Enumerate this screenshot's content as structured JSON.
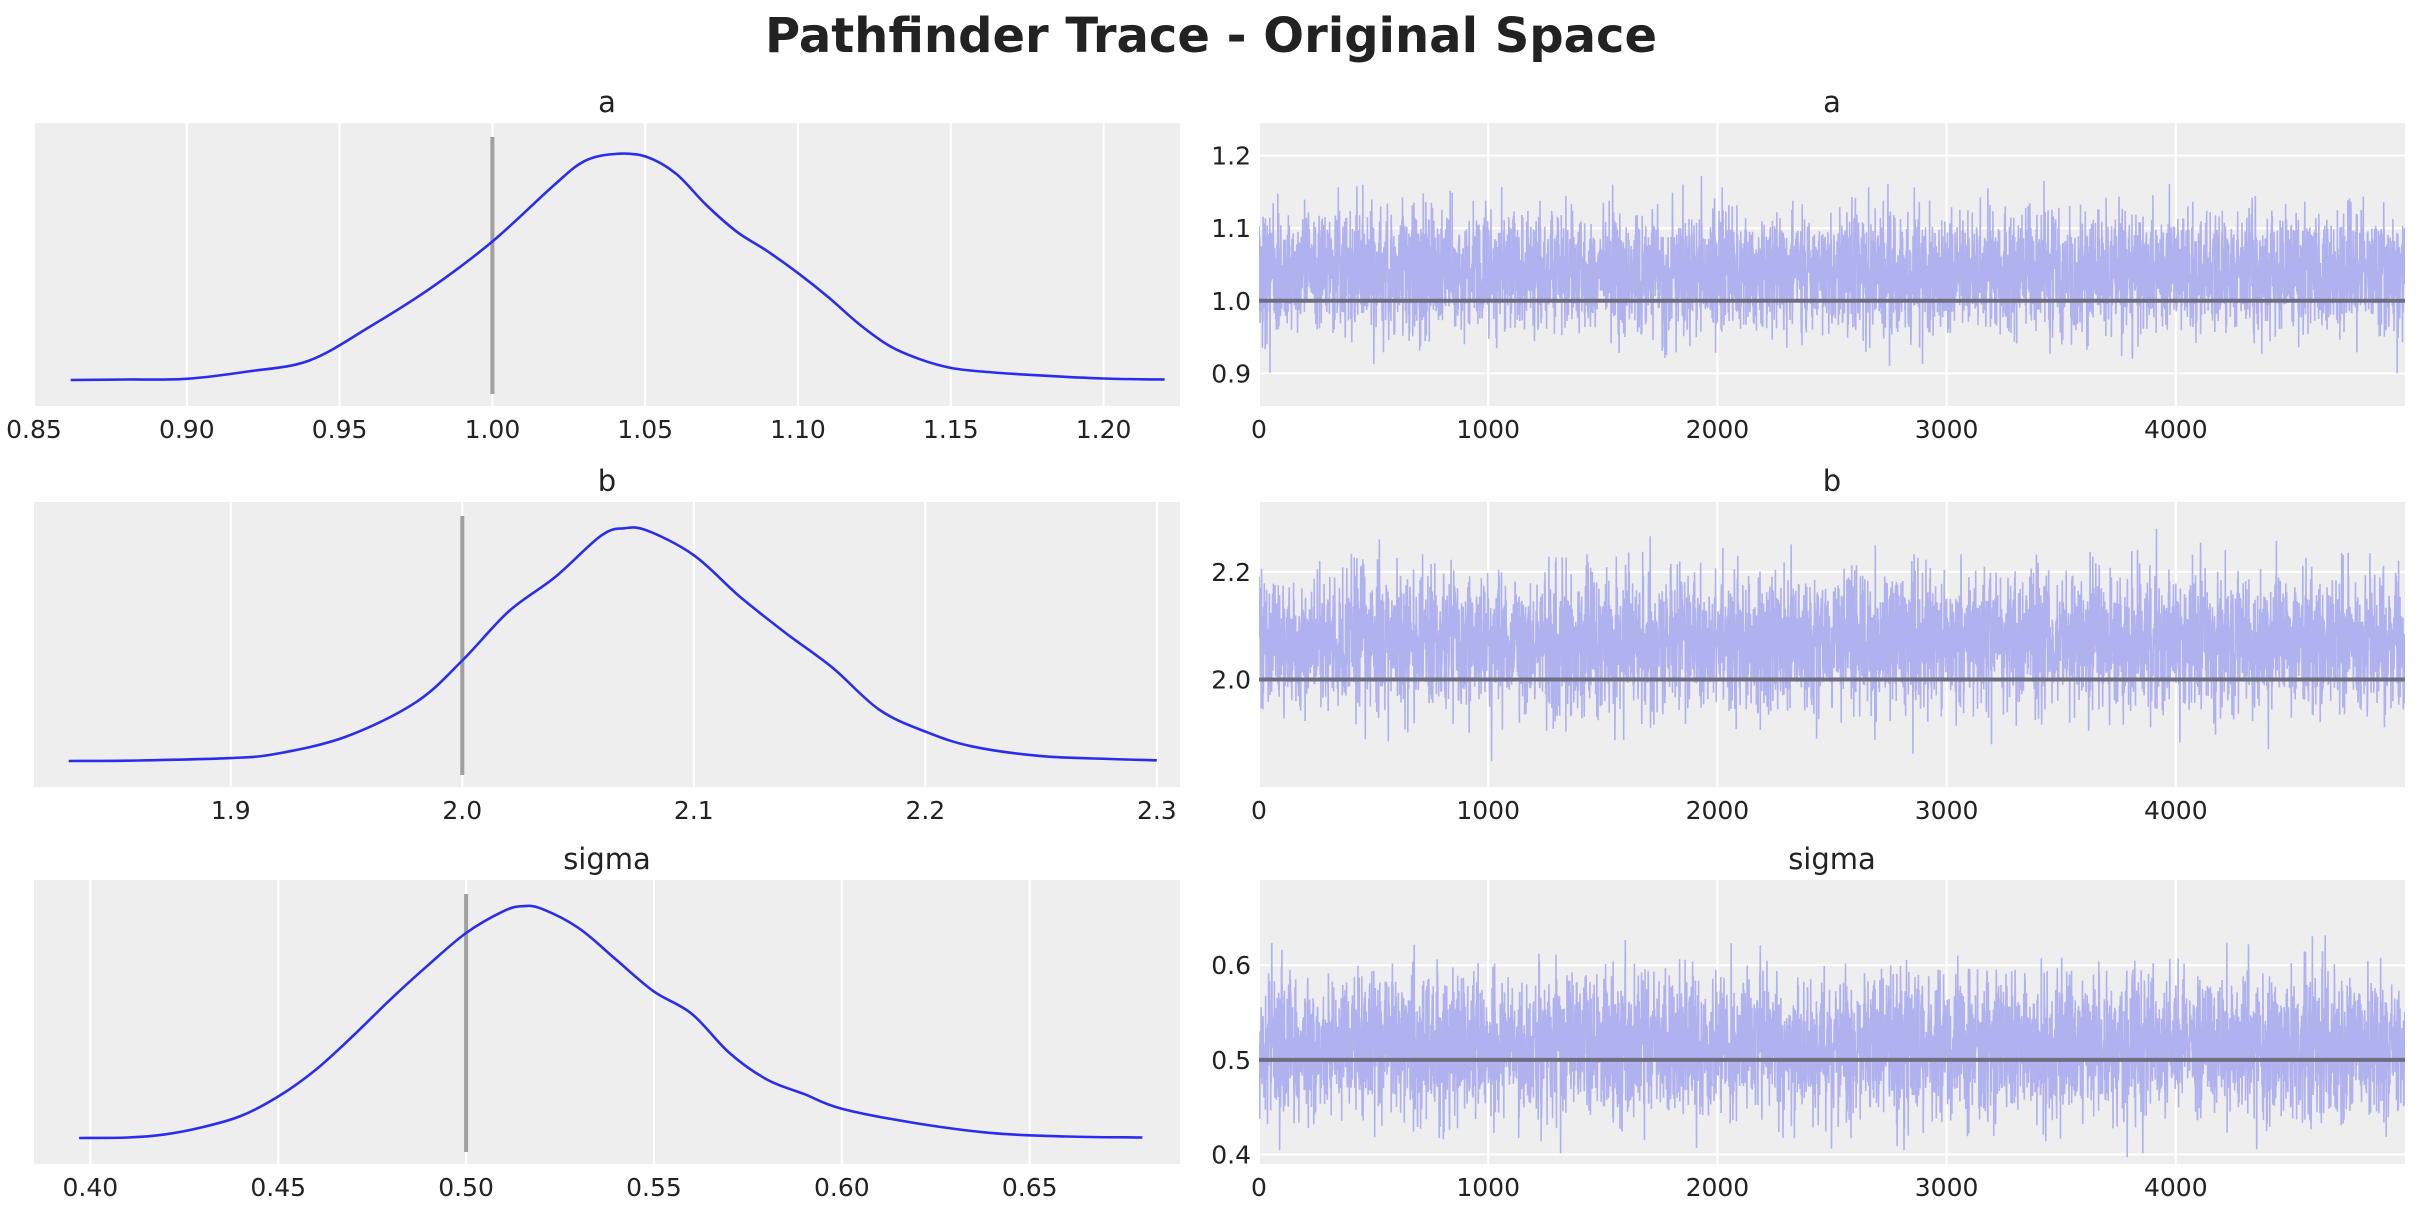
{
  "figure": {
    "title": "Pathfinder Trace - Original Space"
  },
  "colors": {
    "panel_bg": "#eeeeee",
    "grid": "#ffffff",
    "kde_line": "#2a2eec",
    "trace_fill": "#a8aaee",
    "reference_line": "#a0a0a0",
    "reference_line_trace": "#6e6e80"
  },
  "chart_data": [
    {
      "type": "line",
      "variable": "a",
      "title": "a",
      "kind": "kde",
      "xlim": [
        0.85,
        1.225
      ],
      "xticks": [
        "0.85",
        "0.90",
        "0.95",
        "1.00",
        "1.05",
        "1.10",
        "1.15",
        "1.20"
      ],
      "ylim": [
        0,
        1
      ],
      "y_ticks_shown": false,
      "reference_value": 1.0,
      "x": [
        0.862,
        0.88,
        0.9,
        0.92,
        0.94,
        0.96,
        0.98,
        1.0,
        1.02,
        1.03,
        1.04,
        1.05,
        1.06,
        1.07,
        1.08,
        1.09,
        1.1,
        1.11,
        1.12,
        1.13,
        1.14,
        1.15,
        1.16,
        1.18,
        1.2,
        1.22
      ],
      "y": [
        0.0,
        0.002,
        0.005,
        0.035,
        0.08,
        0.22,
        0.38,
        0.57,
        0.8,
        0.9,
        0.93,
        0.92,
        0.85,
        0.72,
        0.61,
        0.53,
        0.44,
        0.34,
        0.23,
        0.14,
        0.085,
        0.05,
        0.035,
        0.018,
        0.006,
        0.002
      ],
      "grid": true
    },
    {
      "type": "line",
      "variable": "a",
      "title": "a",
      "kind": "trace",
      "xlim": [
        0,
        5000
      ],
      "xticks": [
        "0",
        "1000",
        "2000",
        "3000",
        "4000"
      ],
      "ylim": [
        0.855,
        1.245
      ],
      "yticks": [
        "0.9",
        "1.0",
        "1.1",
        "1.2"
      ],
      "reference_value": 1.0,
      "draws": 5000,
      "center": 1.04,
      "spread": 0.041,
      "min_observed": 0.86,
      "max_observed": 1.22,
      "grid": true
    },
    {
      "type": "line",
      "variable": "b",
      "title": "b",
      "kind": "kde",
      "xlim": [
        1.815,
        2.31
      ],
      "xticks": [
        "1.9",
        "2.0",
        "2.1",
        "2.2",
        "2.3"
      ],
      "ylim": [
        0,
        1
      ],
      "y_ticks_shown": false,
      "reference_value": 2.0,
      "x": [
        1.83,
        1.86,
        1.9,
        1.92,
        1.95,
        1.98,
        2.0,
        2.02,
        2.04,
        2.06,
        2.07,
        2.08,
        2.1,
        2.12,
        2.14,
        2.16,
        2.18,
        2.2,
        2.22,
        2.25,
        2.28,
        2.3
      ],
      "y": [
        0.0,
        0.002,
        0.012,
        0.03,
        0.1,
        0.24,
        0.41,
        0.61,
        0.75,
        0.92,
        0.95,
        0.94,
        0.84,
        0.67,
        0.52,
        0.38,
        0.21,
        0.12,
        0.06,
        0.02,
        0.008,
        0.003
      ],
      "grid": true
    },
    {
      "type": "line",
      "variable": "b",
      "title": "b",
      "kind": "trace",
      "xlim": [
        0,
        5000
      ],
      "xticks": [
        "0",
        "1000",
        "2000",
        "3000",
        "4000"
      ],
      "ylim": [
        1.8,
        2.33
      ],
      "yticks": [
        "2.0",
        "2.2"
      ],
      "reference_value": 2.0,
      "draws": 5000,
      "center": 2.07,
      "spread": 0.062,
      "min_observed": 1.83,
      "max_observed": 2.3,
      "grid": true
    },
    {
      "type": "line",
      "variable": "sigma",
      "title": "sigma",
      "kind": "kde",
      "xlim": [
        0.385,
        0.69
      ],
      "xticks": [
        "0.40",
        "0.45",
        "0.50",
        "0.55",
        "0.60",
        "0.65"
      ],
      "ylim": [
        0,
        1
      ],
      "y_ticks_shown": false,
      "reference_value": 0.5,
      "x": [
        0.397,
        0.41,
        0.42,
        0.43,
        0.44,
        0.45,
        0.46,
        0.47,
        0.48,
        0.49,
        0.5,
        0.51,
        0.515,
        0.52,
        0.53,
        0.54,
        0.55,
        0.56,
        0.57,
        0.58,
        0.59,
        0.6,
        0.62,
        0.64,
        0.66,
        0.68
      ],
      "y": [
        0.0,
        0.002,
        0.015,
        0.045,
        0.09,
        0.17,
        0.28,
        0.42,
        0.57,
        0.71,
        0.84,
        0.93,
        0.95,
        0.94,
        0.86,
        0.73,
        0.6,
        0.51,
        0.35,
        0.24,
        0.18,
        0.12,
        0.06,
        0.02,
        0.006,
        0.002
      ],
      "grid": true
    },
    {
      "type": "line",
      "variable": "sigma",
      "title": "sigma",
      "kind": "trace",
      "xlim": [
        0,
        5000
      ],
      "xticks": [
        "0",
        "1000",
        "2000",
        "3000",
        "4000"
      ],
      "ylim": [
        0.39,
        0.69
      ],
      "yticks": [
        "0.4",
        "0.5",
        "0.6"
      ],
      "reference_value": 0.5,
      "draws": 5000,
      "center": 0.515,
      "spread": 0.037,
      "min_observed": 0.395,
      "max_observed": 0.68,
      "grid": true
    }
  ]
}
